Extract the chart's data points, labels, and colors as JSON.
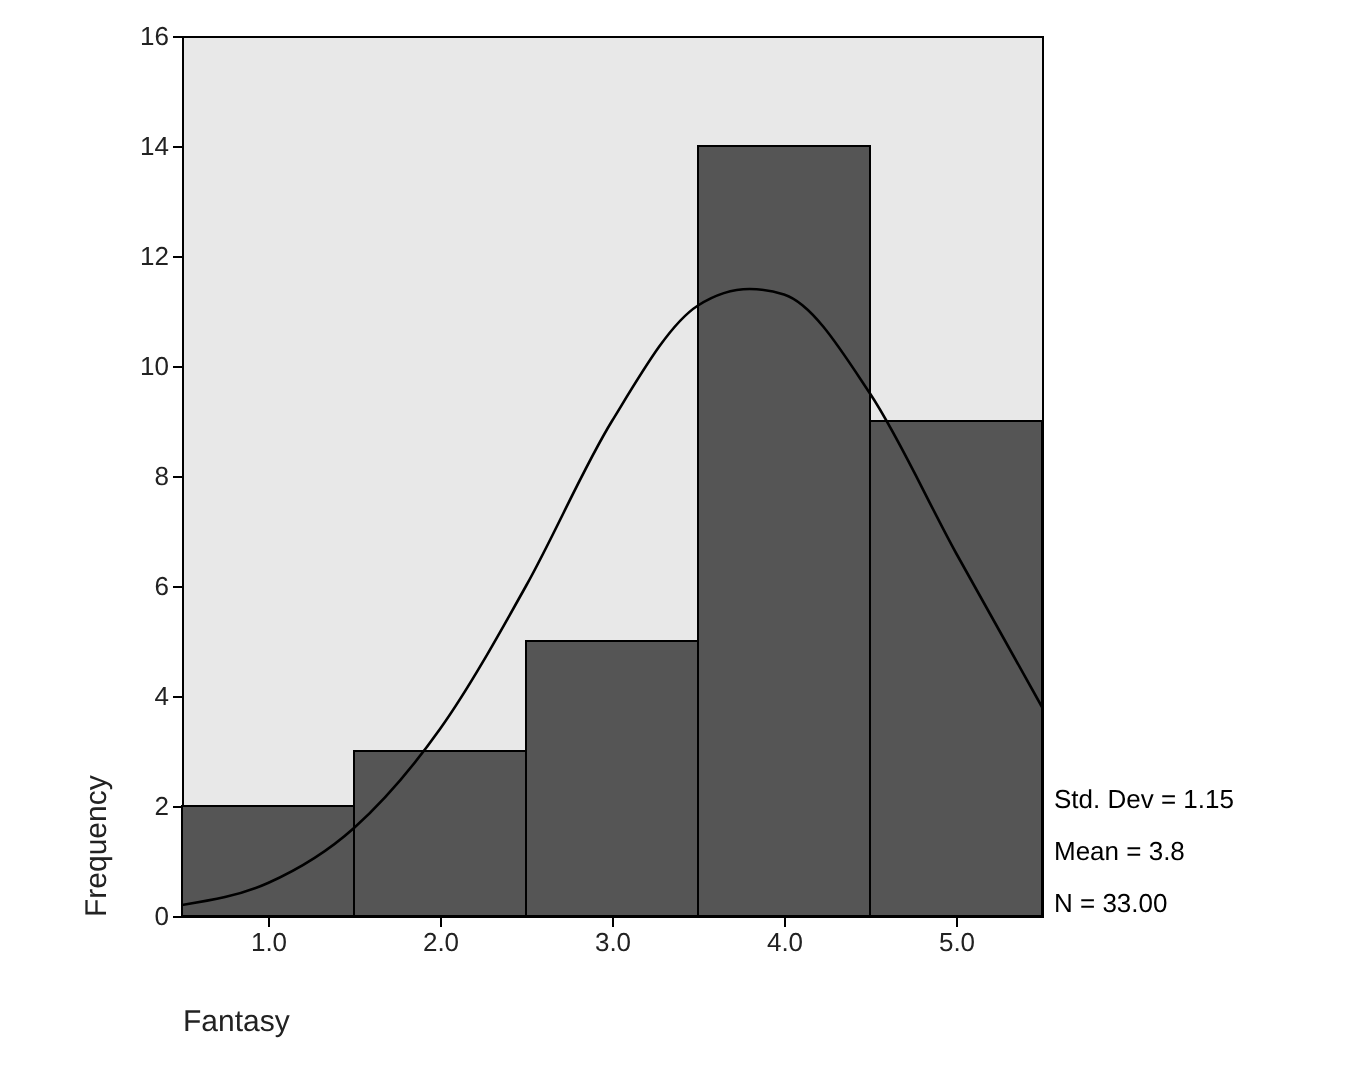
{
  "chart_data": {
    "type": "histogram",
    "xlabel": "Fantasy",
    "ylabel": "Frequency",
    "bins": [
      0.5,
      1.5,
      2.5,
      3.5,
      4.5,
      5.5
    ],
    "series": [
      {
        "color": "#555555",
        "values": [
          2,
          3,
          5,
          14,
          9
        ]
      },
      {
        "type": "line",
        "color": "#000000",
        "x": [
          0.5,
          1.0,
          1.5,
          2.0,
          2.5,
          3.0,
          3.5,
          3.8,
          4.0,
          4.5,
          5.0,
          5.5
        ],
        "values": [
          0.2,
          0.6,
          1.6,
          3.4,
          6.0,
          9.0,
          11.1,
          11.4,
          11.3,
          9.5,
          6.6,
          3.8
        ]
      }
    ],
    "xlim": [
      0.5,
      5.5
    ],
    "xticks": [
      {
        "value": 1,
        "label": "1.0"
      },
      {
        "value": 2,
        "label": "2.0"
      },
      {
        "value": 3,
        "label": "3.0"
      },
      {
        "value": 4,
        "label": "4.0"
      },
      {
        "value": 5,
        "label": "5.0"
      }
    ],
    "ylim": [
      0,
      16
    ],
    "yticks": [
      0,
      2,
      4,
      6,
      8,
      10,
      12,
      14,
      16
    ],
    "annotations": [
      "Std. Dev = 1.15",
      "Mean = 3.8",
      "N = 33.00"
    ]
  }
}
